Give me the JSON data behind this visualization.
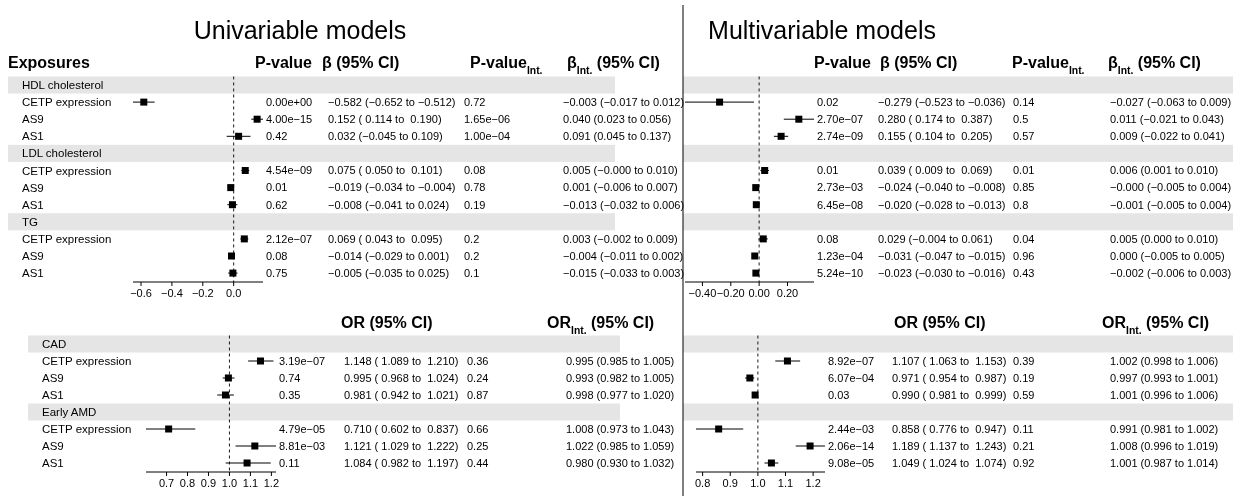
{
  "chart_data": [
    {
      "type": "scatter",
      "orientation": "horizontal",
      "title": "Univariable models",
      "ylabel": "Exposures",
      "marker": "square",
      "xlim": [
        -0.652,
        0.19
      ],
      "xticks": [
        {
          "value": -0.6,
          "label": "−0.6"
        },
        {
          "value": -0.4,
          "label": "−0.4"
        },
        {
          "value": -0.2,
          "label": "−0.2"
        },
        {
          "value": 0,
          "label": "0.0"
        }
      ],
      "ref_lines": [
        {
          "axis": "x",
          "value": 0,
          "line_style": "dashed"
        }
      ],
      "categories": [
        "HDL cholesterol",
        "CETP expression",
        "AS9",
        "AS1",
        "LDL cholesterol",
        "CETP expression",
        "AS9",
        "AS1",
        "TG",
        "CETP expression",
        "AS9",
        "AS1"
      ],
      "series": [
        {
          "color": "#000000",
          "values": [
            null,
            -0.582,
            0.152,
            0.032,
            null,
            0.075,
            -0.019,
            -0.008,
            null,
            0.069,
            -0.014,
            -0.005
          ],
          "errors": [
            null,
            [
              -0.652,
              -0.512
            ],
            [
              0.114,
              0.19
            ],
            [
              -0.045,
              0.109
            ],
            null,
            [
              0.05,
              0.101
            ],
            [
              -0.034,
              -0.004
            ],
            [
              -0.041,
              0.024
            ],
            null,
            [
              0.043,
              0.095
            ],
            [
              -0.029,
              0.001
            ],
            [
              -0.035,
              0.025
            ]
          ]
        }
      ]
    },
    {
      "type": "other",
      "annotations": [
        "P-value",
        "β (95% CI)",
        "P-value$_{Int.}$",
        "β$_{Int.}$ (95% CI)",
        "0.00e+00",
        "−0.582 (−0.652 to −0.512)",
        "0.72",
        "−0.003 (−0.017 to 0.012)",
        "4.00e−15",
        "0.152 ( 0.114 to  0.190)",
        "1.65e−06",
        "0.040 (0.023 to 0.056)",
        "0.42",
        "0.032 (−0.045 to 0.109)",
        "1.00e−04",
        "0.091 (0.045 to 0.137)",
        "4.54e−09",
        "0.075 ( 0.050 to  0.101)",
        "0.08",
        "0.005 (−0.000 to 0.010)",
        "0.01",
        "−0.019 (−0.034 to −0.004)",
        "0.78",
        "0.001 (−0.006 to 0.007)",
        "0.62",
        "−0.008 (−0.041 to 0.024)",
        "0.19",
        "−0.013 (−0.032 to 0.006)",
        "2.12e−07",
        "0.069 ( 0.043 to  0.095)",
        "0.2",
        "0.003 (−0.002 to 0.009)",
        "0.08",
        "−0.014 (−0.029 to 0.001)",
        "0.2",
        "−0.004 (−0.011 to 0.002)",
        "0.75",
        "−0.005 (−0.035 to 0.025)",
        "0.1",
        "−0.015 (−0.033 to 0.003)"
      ]
    },
    {
      "type": "scatter",
      "orientation": "horizontal",
      "title": "Multivariable models",
      "marker": "square",
      "xlim": [
        -0.523,
        0.387
      ],
      "xticks": [
        {
          "value": -0.4,
          "label": "−0.40"
        },
        {
          "value": -0.2,
          "label": "−0.20"
        },
        {
          "value": 0,
          "label": "0.00"
        },
        {
          "value": 0.2,
          "label": "0.20"
        }
      ],
      "ref_lines": [
        {
          "axis": "x",
          "value": 0,
          "line_style": "dashed"
        }
      ],
      "categories": [
        null,
        null,
        null,
        null,
        null,
        null,
        null,
        null,
        null,
        null,
        null,
        null
      ],
      "series": [
        {
          "color": "#000000",
          "values": [
            null,
            -0.279,
            0.28,
            0.155,
            null,
            0.039,
            -0.024,
            -0.02,
            null,
            0.029,
            -0.031,
            -0.023
          ],
          "errors": [
            null,
            [
              -0.523,
              -0.036
            ],
            [
              0.174,
              0.387
            ],
            [
              0.104,
              0.205
            ],
            null,
            [
              0.009,
              0.069
            ],
            [
              -0.04,
              -0.008
            ],
            [
              -0.028,
              -0.013
            ],
            null,
            [
              -0.004,
              0.061
            ],
            [
              -0.047,
              -0.015
            ],
            [
              -0.03,
              -0.016
            ]
          ]
        }
      ]
    },
    {
      "type": "other",
      "annotations": [
        "P-value",
        "β (95% CI)",
        "P-value$_{Int.}$",
        "β$_{Int.}$ (95% CI)",
        "0.02",
        "−0.279 (−0.523 to −0.036)",
        "0.14",
        "−0.027 (−0.063 to 0.009)",
        "2.70e−07",
        "0.280 ( 0.174 to  0.387)",
        "0.5",
        "0.011 (−0.021 to 0.043)",
        "2.74e−09",
        "0.155 ( 0.104 to  0.205)",
        "0.57",
        "0.009 (−0.022 to 0.041)",
        "0.01",
        "0.039 ( 0.009 to  0.069)",
        "0.01",
        "0.006 (0.001 to 0.010)",
        "2.73e−03",
        "−0.024 (−0.040 to −0.008)",
        "0.85",
        "−0.000 (−0.005 to 0.004)",
        "6.45e−08",
        "−0.020 (−0.028 to −0.013)",
        "0.8",
        "−0.001 (−0.005 to 0.004)",
        "0.08",
        "0.029 (−0.004 to 0.061)",
        "0.04",
        "0.005 (0.000 to 0.010)",
        "1.23e−04",
        "−0.031 (−0.047 to −0.015)",
        "0.96",
        "0.000 (−0.005 to 0.005)",
        "5.24e−10",
        "−0.023 (−0.030 to −0.016)",
        "0.43",
        "−0.002 (−0.006 to 0.003)"
      ]
    },
    {
      "type": "scatter",
      "orientation": "horizontal",
      "marker": "square",
      "xlim": [
        0.602,
        1.222
      ],
      "xticks": [
        0.7,
        0.8,
        0.9,
        {
          "value": 1,
          "label": "1.0"
        },
        1.1,
        1.2
      ],
      "ref_lines": [
        {
          "axis": "x",
          "value": 1,
          "line_style": "dashed"
        }
      ],
      "categories": [
        "CAD",
        "CETP expression",
        "AS9",
        "AS1",
        "Early AMD",
        "CETP expression",
        "AS9",
        "AS1"
      ],
      "series": [
        {
          "color": "#000000",
          "values": [
            null,
            1.148,
            0.995,
            0.981,
            null,
            0.71,
            1.121,
            1.084
          ],
          "errors": [
            null,
            [
              1.089,
              1.21
            ],
            [
              0.968,
              1.024
            ],
            [
              0.942,
              1.021
            ],
            null,
            [
              0.602,
              0.837
            ],
            [
              1.029,
              1.222
            ],
            [
              0.982,
              1.197
            ]
          ]
        }
      ]
    },
    {
      "type": "other",
      "annotations": [
        "OR (95% CI)",
        "OR$_{Int.}$ (95% CI)",
        "3.19e−07",
        "1.148 ( 1.089 to  1.210)",
        "0.36",
        "0.995 (0.985 to 1.005)",
        "0.74",
        "0.995 ( 0.968 to  1.024)",
        "0.24",
        "0.993 (0.982 to 1.005)",
        "0.35",
        "0.981 ( 0.942 to  1.021)",
        "0.87",
        "0.998 (0.977 to 1.020)",
        "4.79e−05",
        "0.710 ( 0.602 to  0.837)",
        "0.66",
        "1.008 (0.973 to 1.043)",
        "8.81e−03",
        "1.121 ( 1.029 to  1.222)",
        "0.25",
        "1.022 (0.985 to 1.059)",
        "0.11",
        "1.084 ( 0.982 to  1.197)",
        "0.44",
        "0.980 (0.930 to 1.032)"
      ]
    },
    {
      "type": "scatter",
      "orientation": "horizontal",
      "marker": "square",
      "xlim": [
        0.776,
        1.243
      ],
      "xticks": [
        0.8,
        0.9,
        {
          "value": 1,
          "label": "1.0"
        },
        1.1,
        1.2
      ],
      "ref_lines": [
        {
          "axis": "x",
          "value": 1,
          "line_style": "dashed"
        }
      ],
      "categories": [
        null,
        null,
        null,
        null,
        null,
        null,
        null,
        null
      ],
      "series": [
        {
          "color": "#000000",
          "values": [
            null,
            1.107,
            0.971,
            0.99,
            null,
            0.858,
            1.189,
            1.049
          ],
          "errors": [
            null,
            [
              1.063,
              1.153
            ],
            [
              0.954,
              0.987
            ],
            [
              0.981,
              0.999
            ],
            null,
            [
              0.776,
              0.947
            ],
            [
              1.137,
              1.243
            ],
            [
              1.024,
              1.074
            ]
          ]
        }
      ]
    },
    {
      "type": "other",
      "annotations": [
        "OR (95% CI)",
        "OR$_{Int.}$ (95% CI)",
        "8.92e−07",
        "1.107 ( 1.063 to  1.153)",
        "0.39",
        "1.002 (0.998 to 1.006)",
        "6.07e−04",
        "0.971 ( 0.954 to  0.987)",
        "0.19",
        "0.997 (0.993 to 1.001)",
        "0.03",
        "0.990 ( 0.981 to  0.999)",
        "0.59",
        "1.001 (0.996 to 1.006)",
        "2.44e−03",
        "0.858 ( 0.776 to  0.947)",
        "0.11",
        "0.991 (0.981 to 1.002)",
        "2.06e−14",
        "1.189 ( 1.137 to  1.243)",
        "0.21",
        "1.008 (0.996 to 1.019)",
        "9.08e−05",
        "1.049 ( 1.024 to  1.074)",
        "0.92",
        "1.001 (0.987 to 1.014)"
      ]
    }
  ]
}
